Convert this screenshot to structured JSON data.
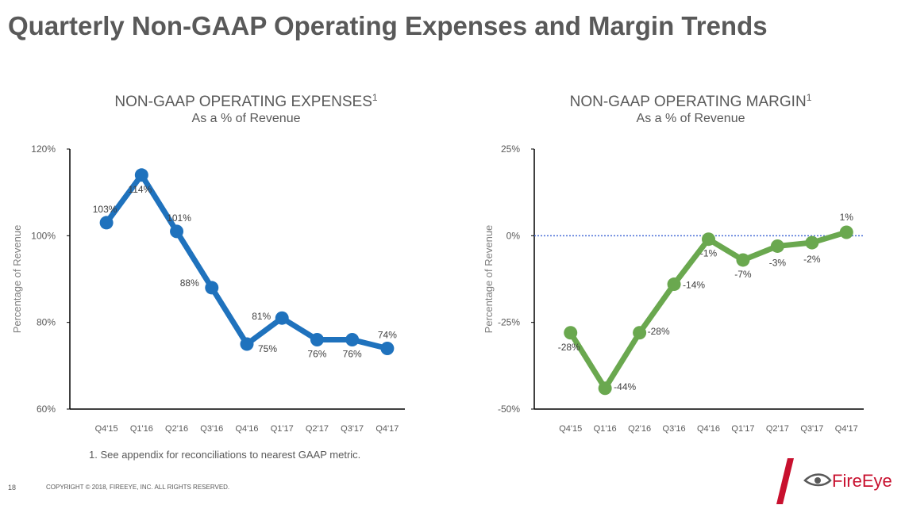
{
  "page": {
    "title": "Quarterly Non-GAAP Operating Expenses and Margin Trends",
    "footnote": "1.  See appendix for reconciliations to nearest GAAP metric.",
    "page_number": "18",
    "copyright": "COPYRIGHT © 2018, FIREEYE, INC. ALL RIGHTS RESERVED.",
    "logo_text": "FireEye"
  },
  "chart_data": [
    {
      "type": "line",
      "title": "NON-GAAP OPERATING EXPENSES",
      "title_sup": "1",
      "subtitle": "As a % of Revenue",
      "ylabel": "Percentage of Revenue",
      "xlabel": "",
      "categories": [
        "Q4'15",
        "Q1'16",
        "Q2'16",
        "Q3'16",
        "Q4'16",
        "Q1'17",
        "Q2'17",
        "Q3'17",
        "Q4'17"
      ],
      "series": [
        {
          "values": [
            103,
            114,
            101,
            88,
            75,
            81,
            76,
            76,
            74
          ],
          "labels": [
            "103%",
            "114%",
            "101%",
            "88%",
            "75%",
            "81%",
            "76%",
            "76%",
            "74%"
          ],
          "color": "#1f72bd"
        }
      ],
      "ylim": [
        60,
        120
      ],
      "yticks": [
        60,
        80,
        100,
        120
      ],
      "ytick_labels": [
        "60%",
        "80%",
        "100%",
        "120%"
      ],
      "grid": false
    },
    {
      "type": "line",
      "title": "NON-GAAP OPERATING MARGIN",
      "title_sup": "1",
      "subtitle": "As a % of Revenue",
      "ylabel": "Percentage of Revenue",
      "xlabel": "",
      "categories": [
        "Q4'15",
        "Q1'16",
        "Q2'16",
        "Q3'16",
        "Q4'16",
        "Q1'17",
        "Q2'17",
        "Q3'17",
        "Q4'17"
      ],
      "series": [
        {
          "values": [
            -28,
            -44,
            -28,
            -14,
            -1,
            -7,
            -3,
            -2,
            1
          ],
          "labels": [
            "-28%",
            "-44%",
            "-28%",
            "-14%",
            "-1%",
            "-7%",
            "-3%",
            "-2%",
            "1%"
          ],
          "color": "#6aa84f"
        }
      ],
      "ylim": [
        -50,
        25
      ],
      "yticks": [
        -50,
        -25,
        0,
        25
      ],
      "ytick_labels": [
        "-50%",
        "-25%",
        "0%",
        "25%"
      ],
      "reference_line": {
        "value": 0,
        "style": "dotted",
        "color": "#4a6fd6"
      },
      "grid": false
    }
  ],
  "colors": {
    "title": "#595959",
    "expenses_line": "#1f72bd",
    "margin_line": "#6aa84f",
    "logo": "#c8102e"
  }
}
